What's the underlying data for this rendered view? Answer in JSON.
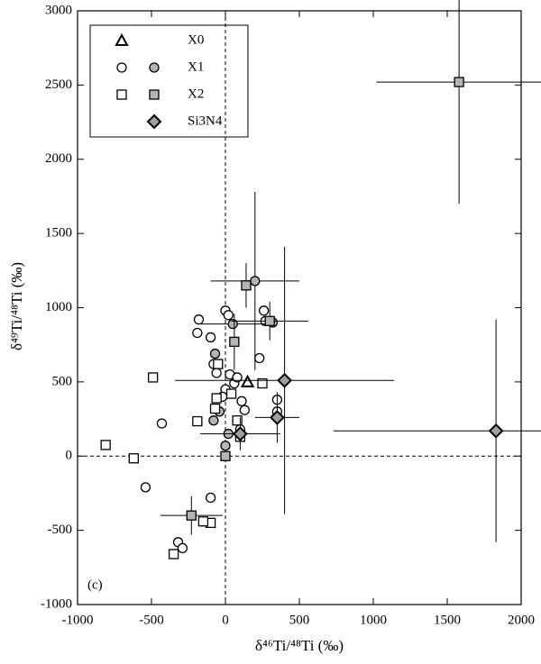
{
  "chart_data": {
    "type": "scatter",
    "x_label": "δ⁴⁶Ti/⁴⁸Ti (‰)",
    "y_label": "δ⁴⁹Ti/⁴⁸Ti (‰)",
    "annotation": "(c)",
    "xlim": [
      -1000,
      2000
    ],
    "ylim": [
      -1000,
      3000
    ],
    "xticks": [
      -1000,
      -500,
      0,
      500,
      1000,
      1500,
      2000
    ],
    "yticks": [
      -1000,
      -500,
      0,
      500,
      1000,
      1500,
      2000,
      2500,
      3000
    ],
    "zero_lines": true,
    "series": [
      {
        "name": "X0",
        "marker": "triangle",
        "groups": [
          {
            "color": "#ffffff",
            "x": [
              150
            ],
            "y": [
              500
            ],
            "xerr": [
              null
            ],
            "yerr": [
              null
            ]
          }
        ]
      },
      {
        "name": "X1",
        "marker": "circle",
        "groups": [
          {
            "color": "#ffffff",
            "x": [
              -180,
              -190,
              -100,
              -60,
              -80,
              0,
              20,
              30,
              0,
              60,
              80,
              260,
              270,
              230,
              350,
              350,
              110,
              130,
              100,
              -430,
              -540,
              -100,
              -320,
              -290,
              -20
            ],
            "y": [
              920,
              830,
              800,
              560,
              620,
              980,
              950,
              550,
              450,
              490,
              530,
              980,
              910,
              660,
              380,
              300,
              370,
              310,
              180,
              220,
              -210,
              -280,
              -580,
              -620,
              400
            ],
            "xerr": [
              null,
              null,
              null,
              null,
              null,
              null,
              null,
              null,
              null,
              null,
              null,
              null,
              null,
              null,
              null,
              null,
              null,
              null,
              null,
              null,
              null,
              null,
              null,
              null,
              null
            ],
            "yerr": [
              null,
              null,
              null,
              null,
              null,
              null,
              null,
              null,
              null,
              null,
              null,
              null,
              null,
              null,
              null,
              null,
              null,
              null,
              null,
              null,
              null,
              null,
              null,
              null,
              null
            ]
          },
          {
            "color": "#b4b4b4",
            "x": [
              200,
              50,
              320,
              -70,
              -80,
              -40,
              0,
              20
            ],
            "y": [
              1180,
              890,
              900,
              690,
              240,
              300,
              70,
              150
            ],
            "xerr": [
              300,
              220,
              null,
              null,
              null,
              null,
              null,
              null
            ],
            "yerr": [
              600,
              null,
              null,
              null,
              null,
              null,
              null,
              null
            ]
          }
        ]
      },
      {
        "name": "X2",
        "marker": "square",
        "groups": [
          {
            "color": "#ffffff",
            "x": [
              -490,
              -810,
              -620,
              -190,
              -70,
              -60,
              -50,
              250,
              80,
              100,
              -100,
              -150,
              -350,
              40
            ],
            "y": [
              530,
              75,
              -15,
              235,
              320,
              390,
              620,
              490,
              240,
              130,
              -450,
              -440,
              -660,
              420
            ],
            "xerr": [
              null,
              null,
              null,
              null,
              null,
              null,
              null,
              null,
              null,
              null,
              null,
              null,
              null,
              null
            ],
            "yerr": [
              null,
              null,
              null,
              null,
              null,
              null,
              null,
              null,
              null,
              null,
              null,
              null,
              null,
              null
            ]
          },
          {
            "color": "#b4b4b4",
            "x": [
              1580,
              140,
              60,
              300,
              0,
              -230
            ],
            "y": [
              2520,
              1150,
              770,
              910,
              0,
              -400
            ],
            "xerr": [
              560,
              null,
              null,
              260,
              null,
              210
            ],
            "yerr": [
              820,
              150,
              190,
              130,
              null,
              130
            ]
          }
        ]
      },
      {
        "name": "Si3N4",
        "marker": "diamond",
        "groups": [
          {
            "color": "#a0a0a0",
            "x": [
              400,
              1830,
              350,
              100
            ],
            "y": [
              510,
              170,
              260,
              150
            ],
            "xerr": [
              740,
              1100,
              150,
              270
            ],
            "yerr": [
              900,
              750,
              170,
              110
            ]
          }
        ]
      }
    ]
  }
}
